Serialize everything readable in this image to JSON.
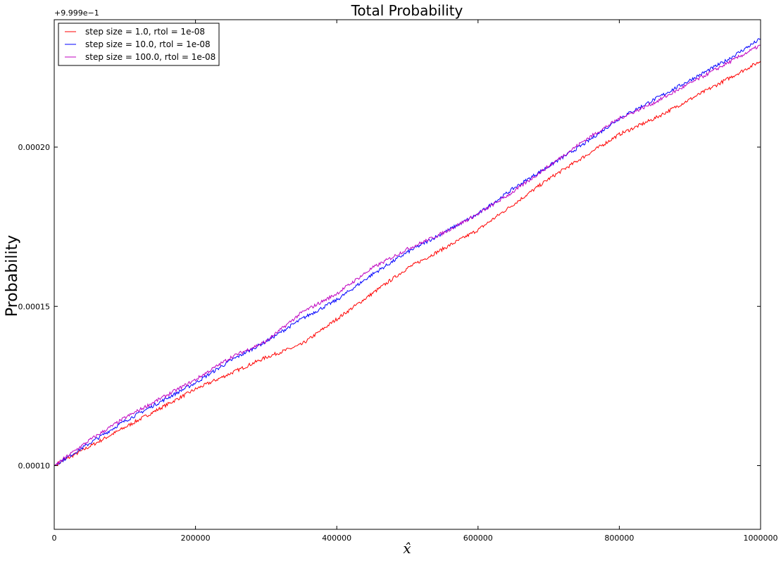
{
  "chart_data": {
    "type": "line",
    "title": "Total Probability",
    "xlabel": "x̂",
    "ylabel": "Probability",
    "y_offset_text": "+9.999e−1",
    "xlim": [
      0,
      1000000
    ],
    "ylim": [
      8e-05,
      0.00024
    ],
    "x_ticks": [
      0,
      200000,
      400000,
      600000,
      800000,
      1000000
    ],
    "x_tick_labels": [
      "0",
      "200000",
      "400000",
      "600000",
      "800000",
      "1000000"
    ],
    "y_ticks": [
      0.0001,
      0.00015,
      0.0002
    ],
    "y_tick_labels": [
      "0.00010",
      "0.00015",
      "0.00020"
    ],
    "legend_position": "upper-left",
    "grid": false,
    "x": [
      0,
      50000,
      100000,
      150000,
      200000,
      250000,
      300000,
      350000,
      400000,
      450000,
      500000,
      550000,
      600000,
      650000,
      700000,
      750000,
      800000,
      850000,
      900000,
      950000,
      1000000
    ],
    "series": [
      {
        "name": "step size = 1.0, rtol = 1e-08",
        "color": "#ff0000",
        "values": [
          0.0001,
          0.000106,
          0.000112,
          0.000118,
          0.000124,
          0.000129,
          0.000134,
          0.000138,
          0.000146,
          0.000154,
          0.000162,
          0.000168,
          0.000174,
          0.000182,
          0.00019,
          0.000197,
          0.000204,
          0.000209,
          0.000215,
          0.000221,
          0.000227
        ]
      },
      {
        "name": "step size = 10.0, rtol = 1e-08",
        "color": "#0000ff",
        "values": [
          0.0001,
          0.000107,
          0.000114,
          0.00012,
          0.000126,
          0.000133,
          0.000139,
          0.000146,
          0.000152,
          0.00016,
          0.000167,
          0.000173,
          0.000179,
          0.000187,
          0.000194,
          0.000201,
          0.000209,
          0.000215,
          0.000221,
          0.000227,
          0.000234
        ]
      },
      {
        "name": "step size = 100.0, rtol = 1e-08",
        "color": "#bf00bf",
        "values": [
          0.0001,
          0.000108,
          0.000115,
          0.000121,
          0.000127,
          0.000134,
          0.000139,
          0.000148,
          0.000154,
          0.000162,
          0.000168,
          0.000173,
          0.000179,
          0.000186,
          0.000194,
          0.000202,
          0.000209,
          0.000214,
          0.00022,
          0.000226,
          0.000232
        ]
      }
    ]
  }
}
